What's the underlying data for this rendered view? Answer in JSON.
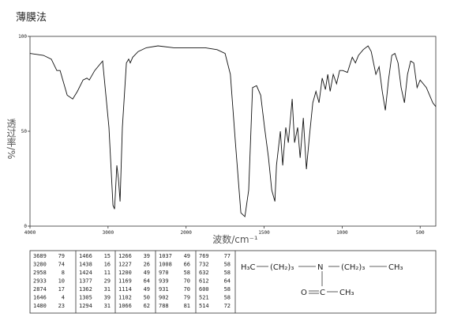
{
  "chart_data": {
    "type": "line",
    "title": "薄膜法",
    "y_label": "透过率/%",
    "x_label": "波数/cm⁻¹",
    "x": [
      4000,
      3828,
      3727,
      3656,
      3615,
      3524,
      3453,
      3393,
      3320,
      3271,
      3240,
      3170,
      3069,
      2988,
      2937,
      2917,
      2887,
      2867,
      2846,
      2816,
      2765,
      2735,
      2715,
      2684,
      2614,
      2510,
      2360,
      2158,
      1978,
      1877,
      1801,
      1750,
      1716,
      1684,
      1649,
      1623,
      1599,
      1574,
      1548,
      1522,
      1497,
      1472,
      1451,
      1431,
      1421,
      1396,
      1381,
      1361,
      1345,
      1320,
      1305,
      1285,
      1269,
      1249,
      1229,
      1209,
      1188,
      1168,
      1148,
      1128,
      1107,
      1092,
      1077,
      1057,
      1036,
      1016,
      996,
      966,
      935,
      915,
      895,
      865,
      834,
      814,
      784,
      763,
      743,
      723,
      703,
      682,
      662,
      642,
      622,
      601,
      581,
      561,
      541,
      520,
      500,
      460,
      419,
      400
    ],
    "values": [
      91,
      90,
      88,
      82,
      82,
      69,
      67,
      71,
      77,
      78,
      77,
      82,
      87,
      52,
      11,
      9,
      32,
      25,
      13,
      52,
      86,
      88,
      86,
      89,
      92,
      94,
      95,
      94,
      94,
      94,
      93,
      91,
      80,
      44,
      7,
      5,
      19,
      73,
      74,
      69,
      52,
      36,
      19,
      13,
      32,
      50,
      32,
      52,
      44,
      67,
      44,
      52,
      36,
      57,
      30,
      48,
      65,
      71,
      65,
      78,
      72,
      80,
      71,
      80,
      75,
      82,
      82,
      81,
      89,
      86,
      90,
      93,
      95,
      92,
      80,
      84,
      71,
      61,
      77,
      90,
      91,
      86,
      73,
      65,
      80,
      87,
      86,
      73,
      77,
      73,
      65,
      63
    ],
    "color": "#111111",
    "xlim": [
      4000,
      400
    ],
    "ylim": [
      0,
      100
    ],
    "xticks": [
      4000,
      3000,
      2000,
      1500,
      1000,
      500
    ],
    "yticks": [
      0,
      50,
      100
    ]
  },
  "peak_table": {
    "columns": [
      [
        [
          "3689",
          "79"
        ],
        [
          "3280",
          "74"
        ],
        [
          "2958",
          "8"
        ],
        [
          "2933",
          "10"
        ],
        [
          "2874",
          "17"
        ],
        [
          "1646",
          "4"
        ],
        [
          "1480",
          "23"
        ]
      ],
      [
        [
          "1466",
          "15"
        ],
        [
          "1438",
          "16"
        ],
        [
          "1424",
          "11"
        ],
        [
          "1377",
          "29"
        ],
        [
          "1362",
          "31"
        ],
        [
          "1305",
          "39"
        ],
        [
          "1294",
          "31"
        ]
      ],
      [
        [
          "1266",
          "39"
        ],
        [
          "1227",
          "26"
        ],
        [
          "1200",
          "49"
        ],
        [
          "1169",
          "64"
        ],
        [
          "1114",
          "49"
        ],
        [
          "1102",
          "50"
        ],
        [
          "1066",
          "62"
        ]
      ],
      [
        [
          "1037",
          "49"
        ],
        [
          "1008",
          "66"
        ],
        [
          "970",
          "58"
        ],
        [
          "939",
          "70"
        ],
        [
          "931",
          "70"
        ],
        [
          "902",
          "79"
        ],
        [
          "788",
          "81"
        ]
      ],
      [
        [
          "769",
          "77"
        ],
        [
          "732",
          "58"
        ],
        [
          "632",
          "58"
        ],
        [
          "612",
          "64"
        ],
        [
          "600",
          "58"
        ],
        [
          "521",
          "58"
        ],
        [
          "514",
          "72"
        ]
      ]
    ]
  },
  "structure": {
    "left": "H₃C",
    "chain1": "(CH₂)₃",
    "n": "N",
    "chain2": "(CH₂)₃",
    "right": "CH₃",
    "o": "O",
    "c": "C",
    "methyl": "CH₃"
  }
}
